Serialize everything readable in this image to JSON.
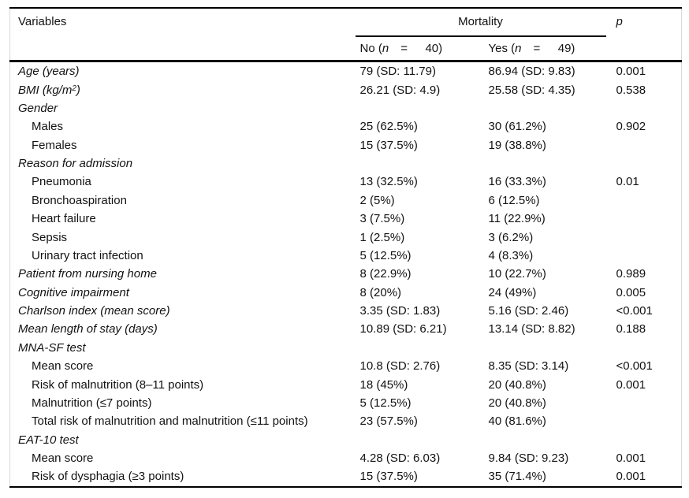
{
  "table": {
    "header": {
      "variables_label": "Variables",
      "mortality_label": "Mortality",
      "p_label": "p",
      "no_col": {
        "prefix": "No (",
        "n": "n",
        "suffix": "  =   40)"
      },
      "yes_col": {
        "prefix": "Yes (",
        "n": "n",
        "suffix": "  =   49)"
      }
    },
    "rows": [
      {
        "label": "Age (years)",
        "italic": true,
        "indent": 0,
        "no": "79 (SD: 11.79)",
        "yes": "86.94 (SD: 9.83)",
        "p": "0.001"
      },
      {
        "label_parts": [
          {
            "t": "BMI (kg/m"
          },
          {
            "t": "2",
            "sup": true
          },
          {
            "t": ")"
          }
        ],
        "italic": true,
        "indent": 0,
        "no": "26.21 (SD: 4.9)",
        "yes": "25.58 (SD: 4.35)",
        "p": "0.538"
      },
      {
        "label": "Gender",
        "italic": true,
        "indent": 0,
        "no": "",
        "yes": "",
        "p": ""
      },
      {
        "label": "Males",
        "italic": false,
        "indent": 1,
        "no": "25 (62.5%)",
        "yes": "30 (61.2%)",
        "p": "0.902"
      },
      {
        "label": "Females",
        "italic": false,
        "indent": 1,
        "no": "15 (37.5%)",
        "yes": "19 (38.8%)",
        "p": ""
      },
      {
        "label": "Reason for admission",
        "italic": true,
        "indent": 0,
        "no": "",
        "yes": "",
        "p": ""
      },
      {
        "label": "Pneumonia",
        "italic": false,
        "indent": 1,
        "no": "13 (32.5%)",
        "yes": "16 (33.3%)",
        "p": "0.01"
      },
      {
        "label": "Bronchoaspiration",
        "italic": false,
        "indent": 1,
        "no": "2 (5%)",
        "yes": "6 (12.5%)",
        "p": ""
      },
      {
        "label": "Heart failure",
        "italic": false,
        "indent": 1,
        "no": "3 (7.5%)",
        "yes": "11 (22.9%)",
        "p": ""
      },
      {
        "label": "Sepsis",
        "italic": false,
        "indent": 1,
        "no": "1 (2.5%)",
        "yes": "3 (6.2%)",
        "p": ""
      },
      {
        "label": "Urinary tract infection",
        "italic": false,
        "indent": 1,
        "no": "5 (12.5%)",
        "yes": "4 (8.3%)",
        "p": ""
      },
      {
        "label": "Patient from nursing home",
        "italic": true,
        "indent": 0,
        "no": "8 (22.9%)",
        "yes": "10 (22.7%)",
        "p": "0.989"
      },
      {
        "label": "Cognitive impairment",
        "italic": true,
        "indent": 0,
        "no": "8 (20%)",
        "yes": "24 (49%)",
        "p": "0.005"
      },
      {
        "label": "Charlson index (mean score)",
        "italic": true,
        "indent": 0,
        "no": "3.35 (SD: 1.83)",
        "yes": "5.16 (SD: 2.46)",
        "p": "<0.001"
      },
      {
        "label": "Mean length of stay (days)",
        "italic": true,
        "indent": 0,
        "no": "10.89 (SD: 6.21)",
        "yes": "13.14 (SD: 8.82)",
        "p": "0.188"
      },
      {
        "label": "MNA-SF test",
        "italic": true,
        "indent": 0,
        "no": "",
        "yes": "",
        "p": ""
      },
      {
        "label": "Mean score",
        "italic": false,
        "indent": 1,
        "no": "10.8 (SD: 2.76)",
        "yes": "8.35 (SD: 3.14)",
        "p": "<0.001"
      },
      {
        "label": "Risk of malnutrition (8–11 points)",
        "italic": false,
        "indent": 1,
        "no": "18 (45%)",
        "yes": "20 (40.8%)",
        "p": "0.001"
      },
      {
        "label": "Malnutrition (≤7 points)",
        "italic": false,
        "indent": 1,
        "no": "5 (12.5%)",
        "yes": "20 (40.8%)",
        "p": ""
      },
      {
        "label": "Total risk of malnutrition and malnutrition (≤11 points)",
        "italic": false,
        "indent": 1,
        "no": "23 (57.5%)",
        "yes": "40 (81.6%)",
        "p": ""
      },
      {
        "label": "EAT-10 test",
        "italic": true,
        "indent": 0,
        "no": "",
        "yes": "",
        "p": ""
      },
      {
        "label": "Mean score",
        "italic": false,
        "indent": 1,
        "no": "4.28 (SD: 6.03)",
        "yes": "9.84 (SD: 9.23)",
        "p": "0.001"
      },
      {
        "label": "Risk of dysphagia (≥3 points)",
        "italic": false,
        "indent": 1,
        "no": "15 (37.5%)",
        "yes": "35 (71.4%)",
        "p": "0.001"
      }
    ]
  }
}
